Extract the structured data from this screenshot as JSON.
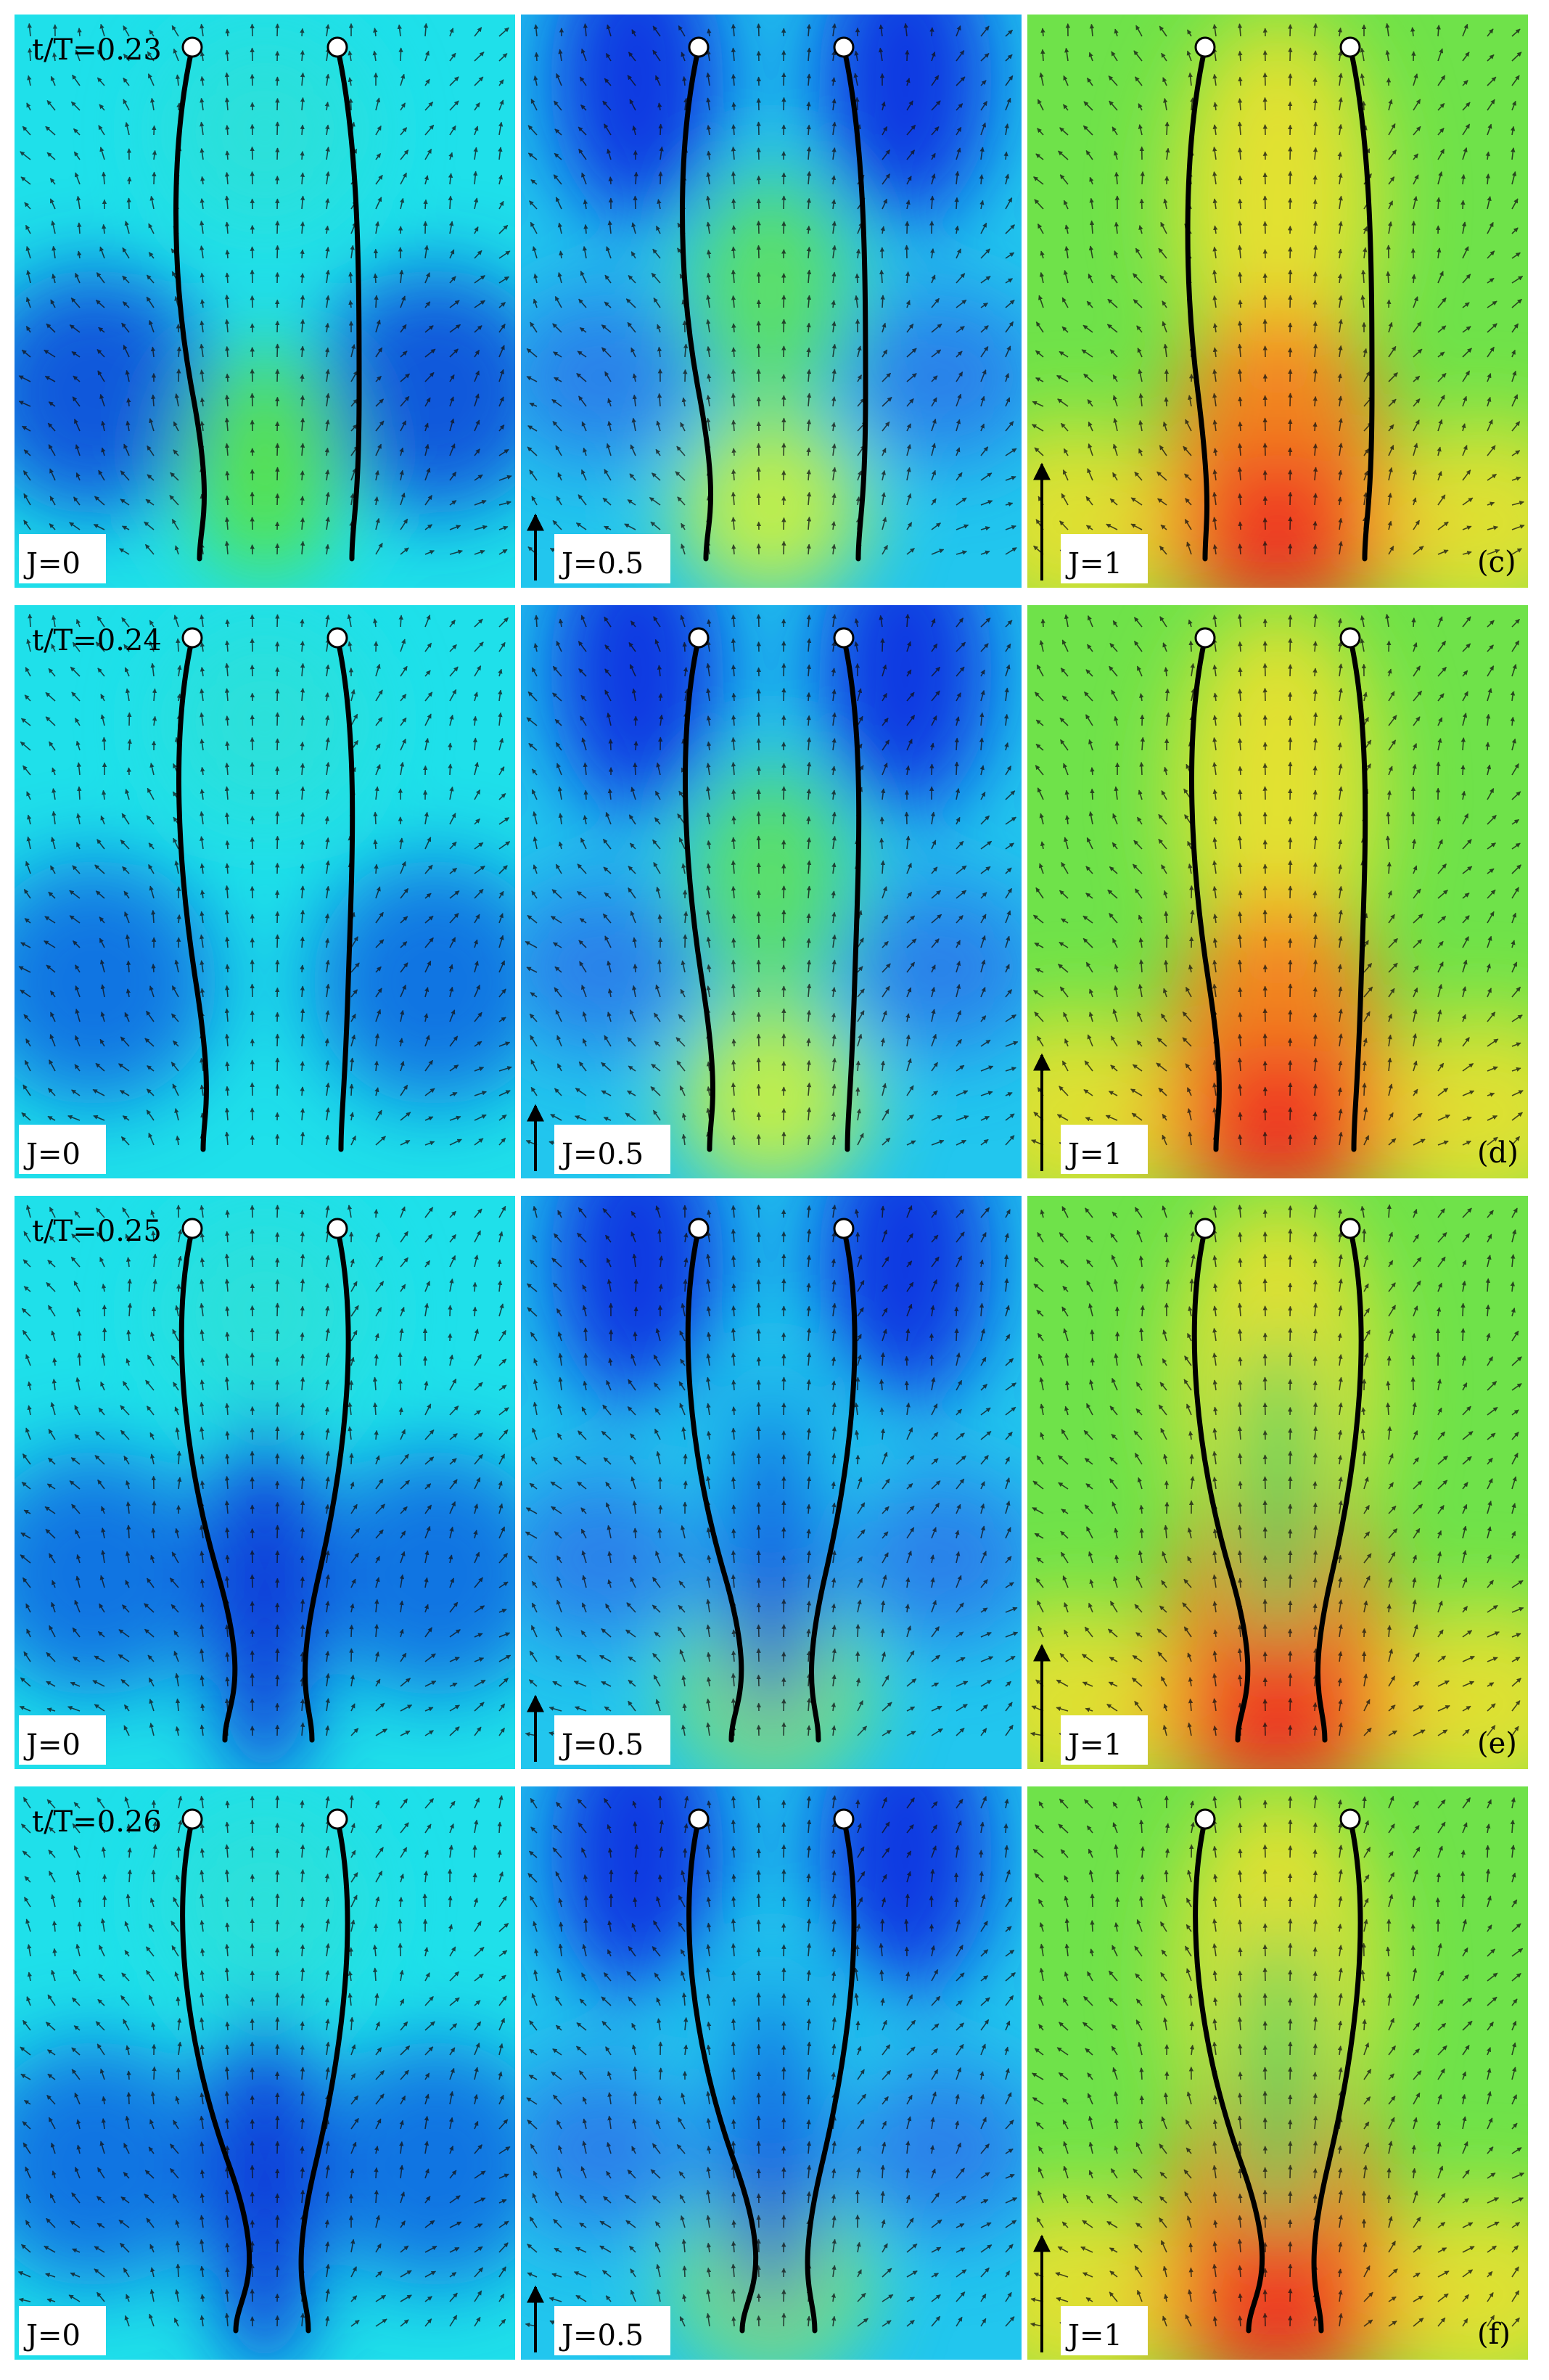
{
  "figure": {
    "rows": [
      {
        "time_label": "t/T=0.23",
        "panel_letter": "(c)"
      },
      {
        "time_label": "t/T=0.24",
        "panel_letter": "(d)"
      },
      {
        "time_label": "t/T=0.25",
        "panel_letter": "(e)"
      },
      {
        "time_label": "t/T=0.26",
        "panel_letter": "(f)"
      }
    ],
    "columns": [
      {
        "j_label": "J=0",
        "scale_arrow": false
      },
      {
        "j_label": "J=0.5",
        "scale_arrow": true
      },
      {
        "j_label": "J=1",
        "scale_arrow": true
      }
    ]
  }
}
